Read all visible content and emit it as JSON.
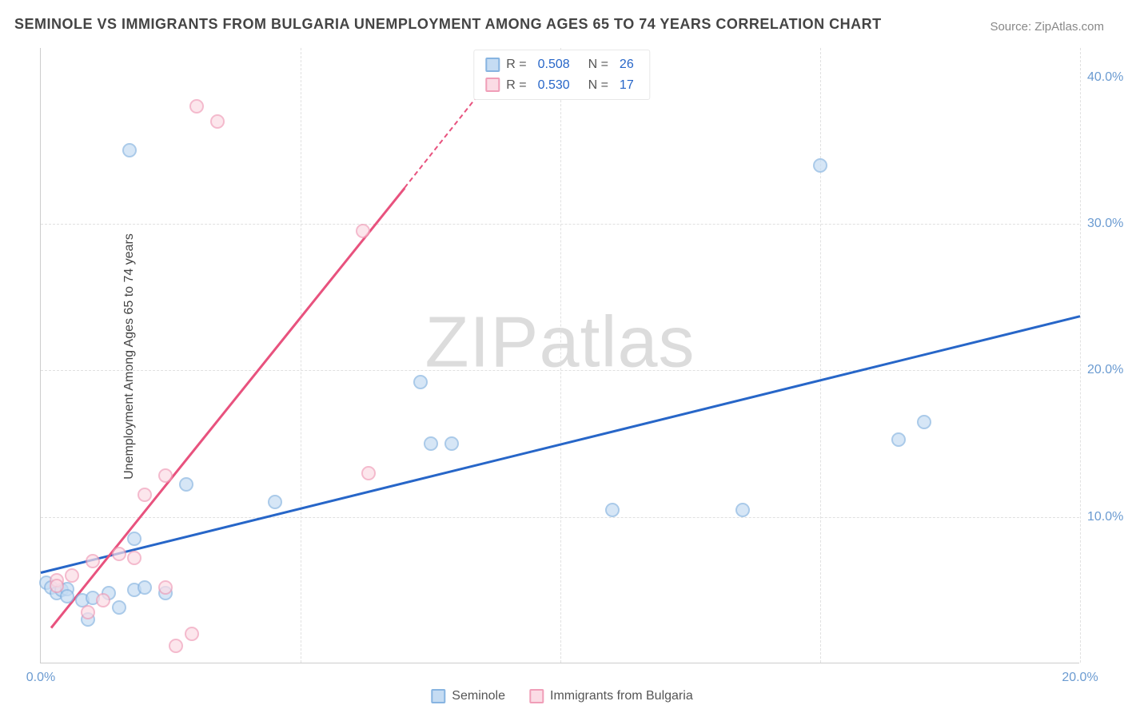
{
  "title": "SEMINOLE VS IMMIGRANTS FROM BULGARIA UNEMPLOYMENT AMONG AGES 65 TO 74 YEARS CORRELATION CHART",
  "source": "Source: ZipAtlas.com",
  "watermark_a": "ZIP",
  "watermark_b": "atlas",
  "chart": {
    "type": "scatter",
    "yaxis_label": "Unemployment Among Ages 65 to 74 years",
    "xlim": [
      0,
      20
    ],
    "ylim": [
      0,
      42
    ],
    "xtick_labels": [
      "0.0%",
      "20.0%"
    ],
    "xtick_positions": [
      0,
      20
    ],
    "ytick_labels": [
      "10.0%",
      "20.0%",
      "30.0%",
      "40.0%"
    ],
    "ytick_positions": [
      10,
      20,
      30,
      40
    ],
    "gridlines_v": [
      5,
      10,
      15,
      20
    ],
    "gridlines_h": [
      10,
      20,
      30
    ],
    "background_color": "#ffffff",
    "grid_color": "#e0e0e0",
    "series": [
      {
        "name": "Seminole",
        "color_fill": "#c5dcf3",
        "color_border": "#87b4e1",
        "trend_color": "#2766c8",
        "R": "0.508",
        "N": "26",
        "trend": {
          "x1": 0,
          "y1": 6.3,
          "x2": 20,
          "y2": 23.8
        },
        "points": [
          [
            0.1,
            5.5
          ],
          [
            0.2,
            5.2
          ],
          [
            0.3,
            4.8
          ],
          [
            0.4,
            5.0
          ],
          [
            0.5,
            5.1
          ],
          [
            0.5,
            4.6
          ],
          [
            0.8,
            4.3
          ],
          [
            0.9,
            3.0
          ],
          [
            1.0,
            4.5
          ],
          [
            1.3,
            4.8
          ],
          [
            1.5,
            3.8
          ],
          [
            1.8,
            8.5
          ],
          [
            1.8,
            5.0
          ],
          [
            2.0,
            5.2
          ],
          [
            2.4,
            4.8
          ],
          [
            2.8,
            12.2
          ],
          [
            1.7,
            35.0
          ],
          [
            4.5,
            11.0
          ],
          [
            7.5,
            15.0
          ],
          [
            7.9,
            15.0
          ],
          [
            7.3,
            19.2
          ],
          [
            11.0,
            10.5
          ],
          [
            13.5,
            10.5
          ],
          [
            15.0,
            34.0
          ],
          [
            16.5,
            15.3
          ],
          [
            17.0,
            16.5
          ]
        ]
      },
      {
        "name": "Immigrants from Bulgaria",
        "color_fill": "#fbdce5",
        "color_border": "#f09eb8",
        "trend_color": "#e8527e",
        "R": "0.530",
        "N": "17",
        "trend_solid": {
          "x1": 0.2,
          "y1": 2.5,
          "x2": 7.0,
          "y2": 32.5
        },
        "trend_dashed": {
          "x1": 7.0,
          "y1": 32.5,
          "x2": 8.5,
          "y2": 39.2
        },
        "points": [
          [
            0.3,
            5.7
          ],
          [
            0.3,
            5.3
          ],
          [
            0.6,
            6.0
          ],
          [
            0.9,
            3.5
          ],
          [
            1.0,
            7.0
          ],
          [
            1.2,
            4.3
          ],
          [
            1.5,
            7.5
          ],
          [
            1.8,
            7.2
          ],
          [
            2.0,
            11.5
          ],
          [
            2.4,
            12.8
          ],
          [
            2.4,
            5.2
          ],
          [
            2.6,
            1.2
          ],
          [
            3.0,
            38.0
          ],
          [
            2.9,
            2.0
          ],
          [
            3.4,
            37.0
          ],
          [
            6.2,
            29.5
          ],
          [
            6.3,
            13.0
          ]
        ]
      }
    ]
  }
}
